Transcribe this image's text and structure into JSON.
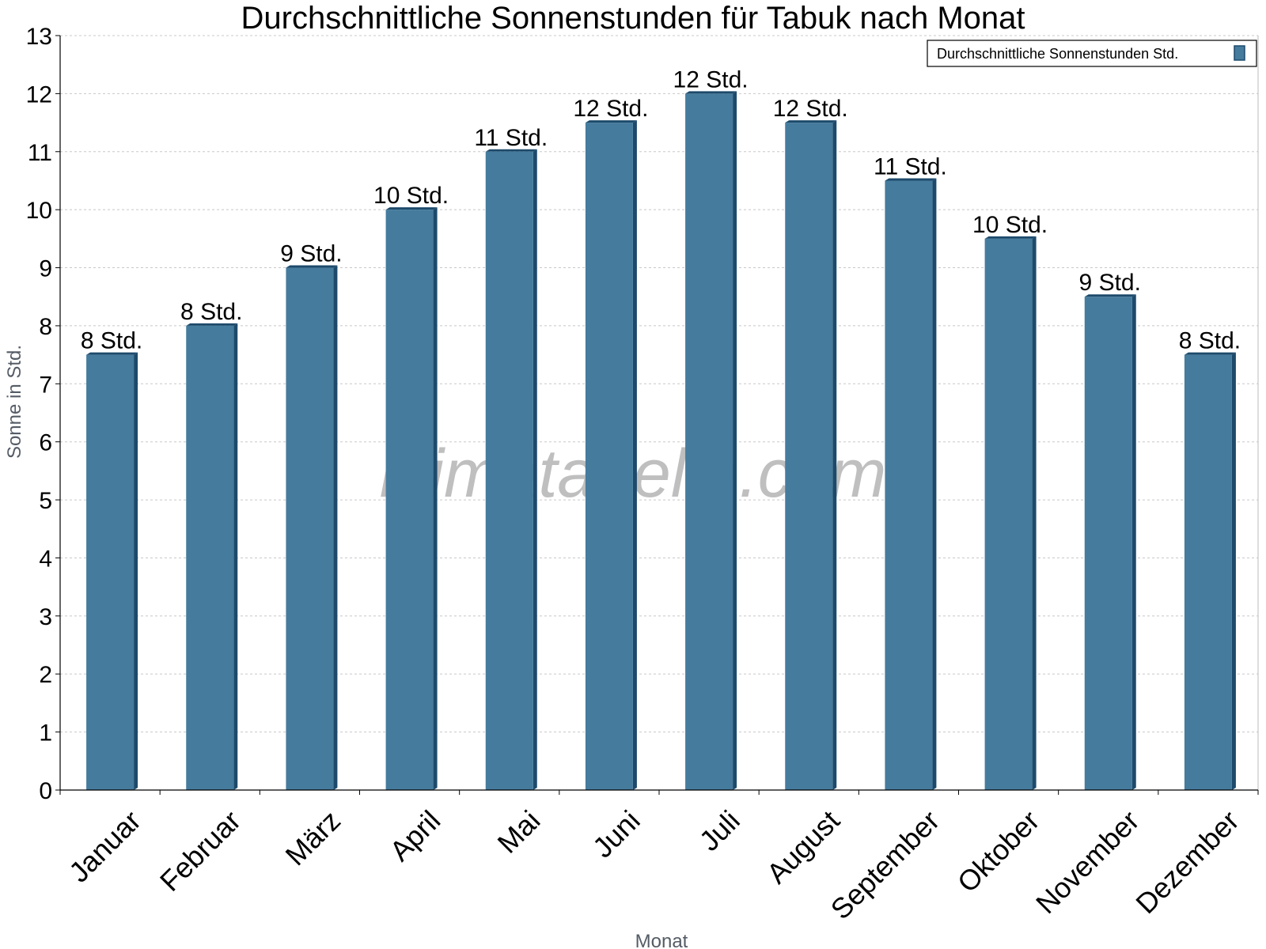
{
  "chart_data": {
    "type": "bar",
    "title": "Durchschnittliche Sonnenstunden für Tabuk nach Monat",
    "xlabel": "Monat",
    "ylabel": "Sonne in Std.",
    "ylim": [
      0,
      13
    ],
    "yticks": [
      "0",
      "1",
      "2",
      "3",
      "4",
      "5",
      "6",
      "7",
      "8",
      "9",
      "10",
      "11",
      "12",
      "13"
    ],
    "grid": true,
    "legend_position": "top-right",
    "categories": [
      "Januar",
      "Februar",
      "März",
      "April",
      "Mai",
      "Juni",
      "Juli",
      "August",
      "September",
      "Oktober",
      "November",
      "Dezember"
    ],
    "series": [
      {
        "name": "Durchschnittliche Sonnenstunden Std.",
        "values": [
          7.5,
          8,
          9,
          10,
          11,
          11.5,
          12,
          11.5,
          10.5,
          9.5,
          8.5,
          7.5
        ],
        "labels": [
          "8 Std.",
          "8 Std.",
          "9 Std.",
          "10 Std.",
          "11 Std.",
          "12 Std.",
          "12 Std.",
          "12 Std.",
          "11 Std.",
          "10 Std.",
          "9 Std.",
          "8 Std."
        ]
      }
    ],
    "watermark": "klimatabelle.com"
  },
  "colors": {
    "bar_front": "#457b9d",
    "bar_dark": "#1d4a6b",
    "bar_top": "#1d4a6b",
    "grid": "#c8c8c8",
    "axis": "#000000"
  }
}
